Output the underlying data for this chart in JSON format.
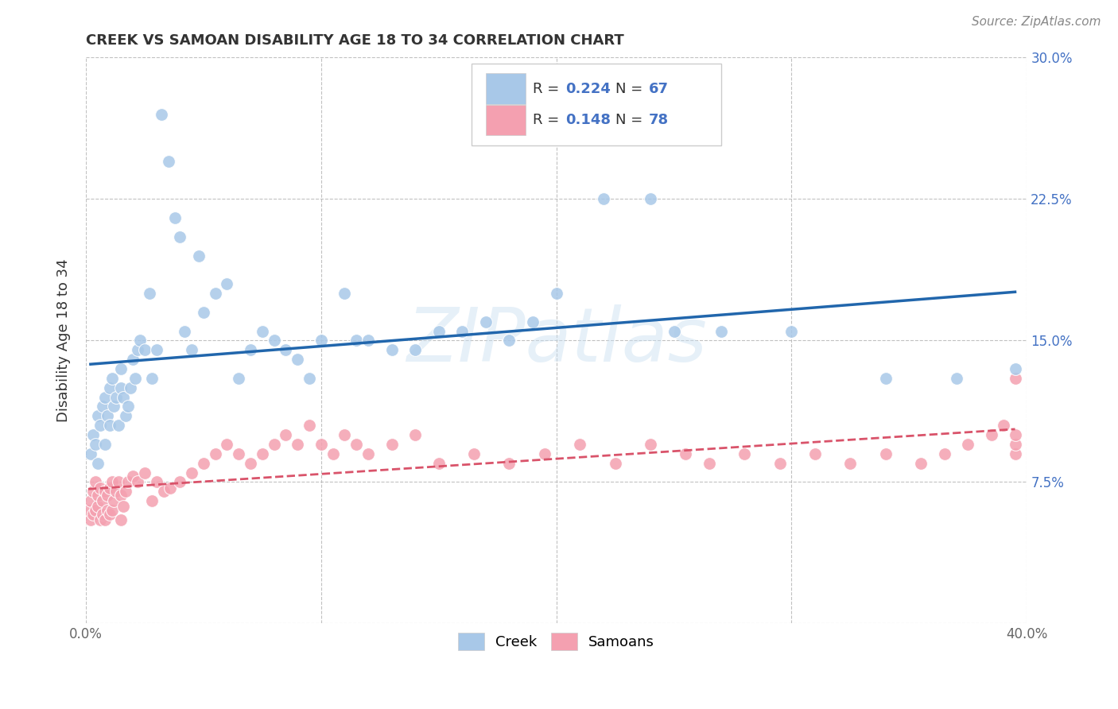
{
  "title": "CREEK VS SAMOAN DISABILITY AGE 18 TO 34 CORRELATION CHART",
  "source": "Source: ZipAtlas.com",
  "ylabel": "Disability Age 18 to 34",
  "xlim": [
    0.0,
    0.4
  ],
  "ylim": [
    0.0,
    0.3
  ],
  "xticks": [
    0.0,
    0.1,
    0.2,
    0.3,
    0.4
  ],
  "yticks": [
    0.0,
    0.075,
    0.15,
    0.225,
    0.3
  ],
  "xticklabels": [
    "0.0%",
    "",
    "",
    "",
    "40.0%"
  ],
  "yticklabels": [
    "",
    "7.5%",
    "15.0%",
    "22.5%",
    "30.0%"
  ],
  "creek_R": "0.224",
  "creek_N": "67",
  "samoan_R": "0.148",
  "samoan_N": "78",
  "creek_scatter_color": "#a8c8e8",
  "samoan_scatter_color": "#f4a0b0",
  "creek_line_color": "#2166ac",
  "samoan_line_color": "#d9536a",
  "watermark": "ZIPatlas",
  "background_color": "#ffffff",
  "grid_color": "#bbbbbb",
  "tick_color_x": "#666666",
  "tick_color_y_right": "#4472c4",
  "legend_blue_color": "#4472c4",
  "creek_x": [
    0.002,
    0.003,
    0.004,
    0.005,
    0.005,
    0.006,
    0.007,
    0.008,
    0.008,
    0.009,
    0.01,
    0.01,
    0.011,
    0.012,
    0.013,
    0.014,
    0.015,
    0.015,
    0.016,
    0.017,
    0.018,
    0.019,
    0.02,
    0.021,
    0.022,
    0.023,
    0.025,
    0.027,
    0.028,
    0.03,
    0.032,
    0.035,
    0.038,
    0.04,
    0.042,
    0.045,
    0.048,
    0.05,
    0.055,
    0.06,
    0.065,
    0.07,
    0.075,
    0.08,
    0.085,
    0.09,
    0.095,
    0.1,
    0.11,
    0.115,
    0.12,
    0.13,
    0.14,
    0.15,
    0.16,
    0.17,
    0.18,
    0.19,
    0.2,
    0.22,
    0.24,
    0.25,
    0.27,
    0.3,
    0.34,
    0.37,
    0.395
  ],
  "creek_y": [
    0.09,
    0.1,
    0.095,
    0.085,
    0.11,
    0.105,
    0.115,
    0.095,
    0.12,
    0.11,
    0.105,
    0.125,
    0.13,
    0.115,
    0.12,
    0.105,
    0.125,
    0.135,
    0.12,
    0.11,
    0.115,
    0.125,
    0.14,
    0.13,
    0.145,
    0.15,
    0.145,
    0.175,
    0.13,
    0.145,
    0.27,
    0.245,
    0.215,
    0.205,
    0.155,
    0.145,
    0.195,
    0.165,
    0.175,
    0.18,
    0.13,
    0.145,
    0.155,
    0.15,
    0.145,
    0.14,
    0.13,
    0.15,
    0.175,
    0.15,
    0.15,
    0.145,
    0.145,
    0.155,
    0.155,
    0.16,
    0.15,
    0.16,
    0.175,
    0.225,
    0.225,
    0.155,
    0.155,
    0.155,
    0.13,
    0.13,
    0.135
  ],
  "samoan_x": [
    0.001,
    0.002,
    0.002,
    0.003,
    0.003,
    0.004,
    0.004,
    0.005,
    0.005,
    0.006,
    0.006,
    0.007,
    0.007,
    0.008,
    0.008,
    0.009,
    0.009,
    0.01,
    0.01,
    0.011,
    0.011,
    0.012,
    0.013,
    0.014,
    0.015,
    0.015,
    0.016,
    0.017,
    0.018,
    0.02,
    0.022,
    0.025,
    0.028,
    0.03,
    0.033,
    0.036,
    0.04,
    0.045,
    0.05,
    0.055,
    0.06,
    0.065,
    0.07,
    0.075,
    0.08,
    0.085,
    0.09,
    0.095,
    0.1,
    0.105,
    0.11,
    0.115,
    0.12,
    0.13,
    0.14,
    0.15,
    0.165,
    0.18,
    0.195,
    0.21,
    0.225,
    0.24,
    0.255,
    0.265,
    0.28,
    0.295,
    0.31,
    0.325,
    0.34,
    0.355,
    0.365,
    0.375,
    0.385,
    0.39,
    0.395,
    0.395,
    0.395,
    0.395
  ],
  "samoan_y": [
    0.06,
    0.055,
    0.065,
    0.058,
    0.07,
    0.06,
    0.075,
    0.062,
    0.068,
    0.055,
    0.072,
    0.058,
    0.065,
    0.055,
    0.07,
    0.06,
    0.068,
    0.058,
    0.072,
    0.06,
    0.075,
    0.065,
    0.07,
    0.075,
    0.055,
    0.068,
    0.062,
    0.07,
    0.075,
    0.078,
    0.075,
    0.08,
    0.065,
    0.075,
    0.07,
    0.072,
    0.075,
    0.08,
    0.085,
    0.09,
    0.095,
    0.09,
    0.085,
    0.09,
    0.095,
    0.1,
    0.095,
    0.105,
    0.095,
    0.09,
    0.1,
    0.095,
    0.09,
    0.095,
    0.1,
    0.085,
    0.09,
    0.085,
    0.09,
    0.095,
    0.085,
    0.095,
    0.09,
    0.085,
    0.09,
    0.085,
    0.09,
    0.085,
    0.09,
    0.085,
    0.09,
    0.095,
    0.1,
    0.105,
    0.09,
    0.095,
    0.1,
    0.13
  ]
}
